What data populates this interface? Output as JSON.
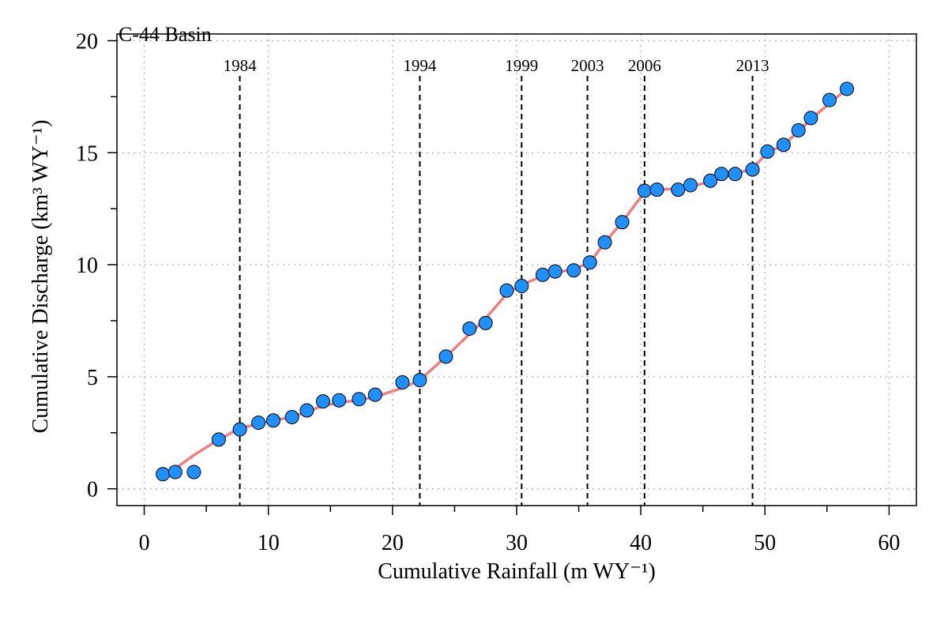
{
  "chart_data": {
    "type": "scatter",
    "title": "C-44 Basin",
    "xlabel": "Cumulative Rainfall (m WY⁻¹)",
    "ylabel": "Cumulative Discharge (km³ WY⁻¹)",
    "xlim": [
      -2.2,
      62.2
    ],
    "ylim": [
      -0.75,
      20.3
    ],
    "xticks": [
      0,
      10,
      20,
      30,
      40,
      50,
      60
    ],
    "yticks": [
      0,
      5,
      10,
      15,
      20
    ],
    "grid": true,
    "points": {
      "x": [
        1.5,
        2.5,
        4.0,
        6.0,
        7.7,
        9.2,
        10.4,
        11.9,
        13.1,
        14.4,
        15.7,
        17.3,
        18.6,
        20.8,
        22.2,
        24.3,
        26.2,
        27.5,
        29.2,
        30.4,
        32.1,
        33.1,
        34.6,
        35.9,
        37.1,
        38.5,
        40.3,
        41.3,
        43.0,
        44.0,
        45.6,
        46.5,
        47.6,
        49.0,
        50.2,
        51.5,
        52.7,
        53.7,
        55.2,
        56.6
      ],
      "y": [
        0.65,
        0.75,
        0.75,
        2.2,
        2.65,
        2.95,
        3.05,
        3.2,
        3.5,
        3.9,
        3.95,
        4.0,
        4.2,
        4.75,
        4.85,
        5.9,
        7.15,
        7.4,
        8.85,
        9.05,
        9.55,
        9.7,
        9.75,
        10.1,
        11.0,
        11.9,
        13.3,
        13.35,
        13.35,
        13.55,
        13.75,
        14.05,
        14.05,
        14.25,
        15.05,
        15.35,
        16.0,
        16.55,
        17.35,
        17.85
      ],
      "color": "#1E90FF",
      "edge_color": "#000000"
    },
    "fit_line": {
      "color": "#F08080",
      "x": [
        1.5,
        4.0,
        6.0,
        7.7,
        9.2,
        10.4,
        11.9,
        13.1,
        14.4,
        15.7,
        17.3,
        18.6,
        20.8,
        22.2,
        24.3,
        26.2,
        27.5,
        29.2,
        30.4,
        32.1,
        33.1,
        34.6,
        35.9,
        37.1,
        38.5,
        40.3,
        41.3,
        43.0,
        44.0,
        45.6,
        46.5,
        47.6,
        49.0,
        50.2,
        51.5,
        52.7,
        53.7,
        55.2,
        56.6
      ],
      "y": [
        0.5,
        1.5,
        2.2,
        2.7,
        2.9,
        3.05,
        3.2,
        3.45,
        3.7,
        3.85,
        3.95,
        4.1,
        4.5,
        4.85,
        5.9,
        6.9,
        7.6,
        8.7,
        9.1,
        9.5,
        9.65,
        9.8,
        10.1,
        11.0,
        11.9,
        13.25,
        13.35,
        13.4,
        13.5,
        13.7,
        13.9,
        14.05,
        14.3,
        15.0,
        15.35,
        15.95,
        16.5,
        17.2,
        17.85
      ]
    },
    "breakpoints": [
      {
        "label": "1984",
        "x": 7.7
      },
      {
        "label": "1994",
        "x": 22.2
      },
      {
        "label": "1999",
        "x": 30.4
      },
      {
        "label": "2003",
        "x": 35.7
      },
      {
        "label": "2006",
        "x": 40.3
      },
      {
        "label": "2013",
        "x": 49.0
      }
    ],
    "colors": {
      "grid": "#BEBEBE",
      "axis": "#000000"
    }
  }
}
